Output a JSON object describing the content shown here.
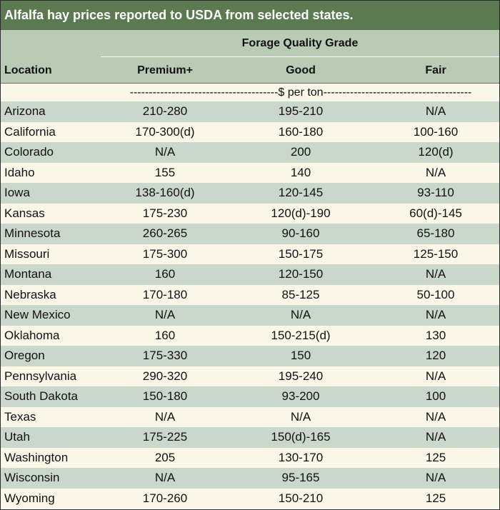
{
  "title": "Alfalfa hay prices reported to USDA from selected states.",
  "group_header": "Forage Quality Grade",
  "columns": {
    "location": "Location",
    "premium": "Premium+",
    "good": "Good",
    "fair": "Fair"
  },
  "unit_label": "---------------------------------------$ per ton---------------------------------------",
  "rows": [
    {
      "location": "Arizona",
      "premium": "210-280",
      "good": "195-210",
      "fair": "N/A"
    },
    {
      "location": "California",
      "premium": "170-300(d)",
      "good": "160-180",
      "fair": "100-160"
    },
    {
      "location": "Colorado",
      "premium": "N/A",
      "good": "200",
      "fair": "120(d)"
    },
    {
      "location": "Idaho",
      "premium": "155",
      "good": "140",
      "fair": "N/A"
    },
    {
      "location": "Iowa",
      "premium": "138-160(d)",
      "good": "120-145",
      "fair": "93-110"
    },
    {
      "location": "Kansas",
      "premium": "175-230",
      "good": "120(d)-190",
      "fair": "60(d)-145"
    },
    {
      "location": "Minnesota",
      "premium": "260-265",
      "good": "90-160",
      "fair": "65-180"
    },
    {
      "location": "Missouri",
      "premium": "175-300",
      "good": "150-175",
      "fair": "125-150"
    },
    {
      "location": "Montana",
      "premium": "160",
      "good": "120-150",
      "fair": "N/A"
    },
    {
      "location": "Nebraska",
      "premium": "170-180",
      "good": "85-125",
      "fair": "50-100"
    },
    {
      "location": "New Mexico",
      "premium": "N/A",
      "good": "N/A",
      "fair": "N/A"
    },
    {
      "location": "Oklahoma",
      "premium": "160",
      "good": "150-215(d)",
      "fair": "130"
    },
    {
      "location": "Oregon",
      "premium": "175-330",
      "good": "150",
      "fair": "120"
    },
    {
      "location": "Pennsylvania",
      "premium": "290-320",
      "good": "195-240",
      "fair": "N/A"
    },
    {
      "location": "South Dakota",
      "premium": "150-180",
      "good": "93-200",
      "fair": "100"
    },
    {
      "location": "Texas",
      "premium": "N/A",
      "good": "N/A",
      "fair": "N/A"
    },
    {
      "location": "Utah",
      "premium": "175-225",
      "good": "150(d)-165",
      "fair": "N/A"
    },
    {
      "location": "Washington",
      "premium": "205",
      "good": "130-170",
      "fair": "125"
    },
    {
      "location": "Wisconsin",
      "premium": "N/A",
      "good": "95-165",
      "fair": "N/A"
    },
    {
      "location": "Wyoming",
      "premium": "170-260",
      "good": "150-210",
      "fair": "125"
    }
  ],
  "colors": {
    "title_bg": "#5b7a52",
    "header_bg": "#b9cbb4",
    "row_green": "#cad8cb",
    "row_cream": "#fbf7e8"
  }
}
